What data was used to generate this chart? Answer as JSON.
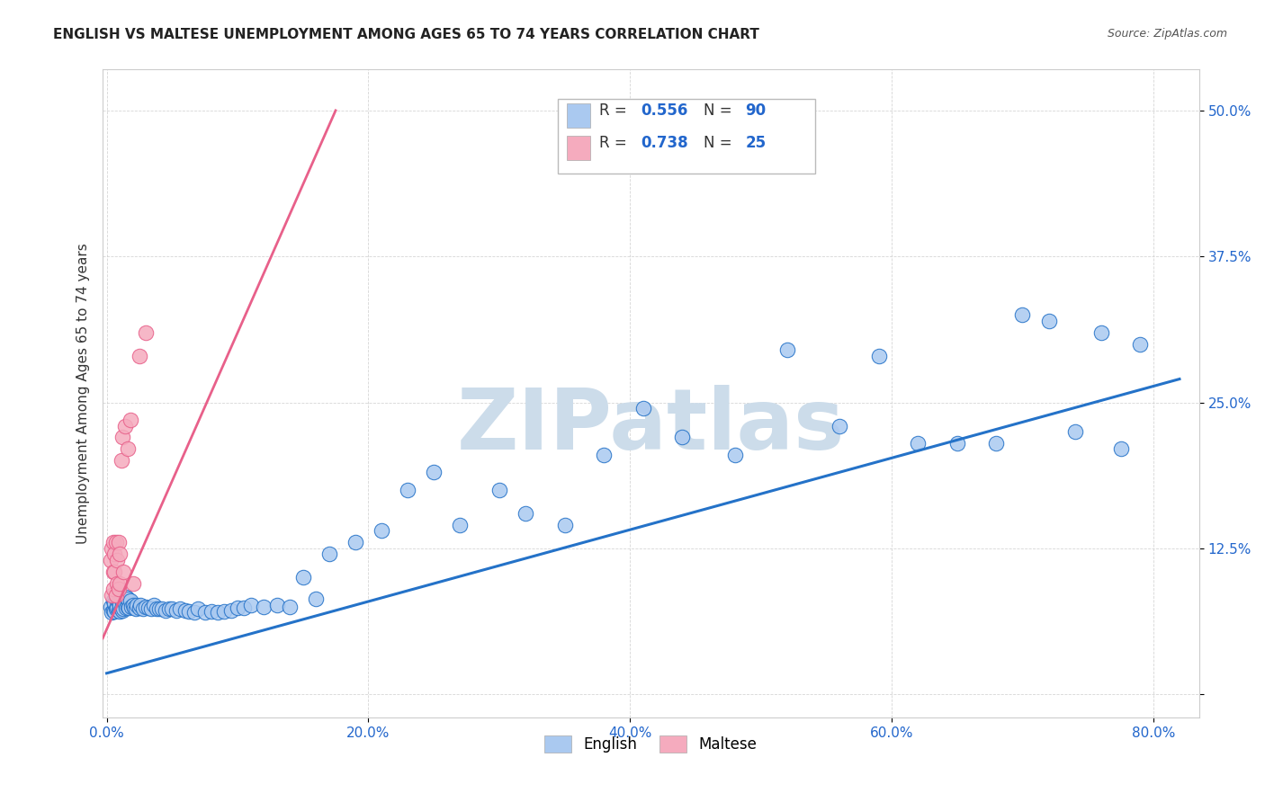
{
  "title": "ENGLISH VS MALTESE UNEMPLOYMENT AMONG AGES 65 TO 74 YEARS CORRELATION CHART",
  "source": "Source: ZipAtlas.com",
  "ylabel": "Unemployment Among Ages 65 to 74 years",
  "xlim": [
    -0.003,
    0.835
  ],
  "ylim": [
    -0.02,
    0.535
  ],
  "xticks": [
    0.0,
    0.2,
    0.4,
    0.6,
    0.8
  ],
  "xtick_labels": [
    "0.0%",
    "20.0%",
    "40.0%",
    "60.0%",
    "80.0%"
  ],
  "yticks": [
    0.0,
    0.125,
    0.25,
    0.375,
    0.5
  ],
  "ytick_labels": [
    "",
    "12.5%",
    "25.0%",
    "37.5%",
    "50.0%"
  ],
  "english_R": "0.556",
  "english_N": "90",
  "maltese_R": "0.738",
  "maltese_N": "25",
  "english_color": "#aac9f0",
  "maltese_color": "#f5abbe",
  "english_line_color": "#2472c8",
  "maltese_line_color": "#e8608a",
  "watermark": "ZIPatlas",
  "watermark_color": "#ccdcea",
  "english_scatter_x": [
    0.003,
    0.004,
    0.005,
    0.005,
    0.006,
    0.006,
    0.007,
    0.007,
    0.008,
    0.008,
    0.009,
    0.009,
    0.01,
    0.01,
    0.01,
    0.011,
    0.011,
    0.012,
    0.012,
    0.013,
    0.013,
    0.014,
    0.015,
    0.015,
    0.016,
    0.016,
    0.017,
    0.018,
    0.019,
    0.02,
    0.021,
    0.022,
    0.023,
    0.025,
    0.026,
    0.028,
    0.03,
    0.032,
    0.034,
    0.036,
    0.038,
    0.04,
    0.042,
    0.045,
    0.048,
    0.05,
    0.053,
    0.056,
    0.06,
    0.063,
    0.067,
    0.07,
    0.075,
    0.08,
    0.085,
    0.09,
    0.095,
    0.1,
    0.105,
    0.11,
    0.12,
    0.13,
    0.14,
    0.15,
    0.16,
    0.17,
    0.19,
    0.21,
    0.23,
    0.25,
    0.27,
    0.3,
    0.32,
    0.35,
    0.38,
    0.41,
    0.44,
    0.48,
    0.52,
    0.56,
    0.59,
    0.62,
    0.65,
    0.68,
    0.7,
    0.72,
    0.74,
    0.76,
    0.775,
    0.79
  ],
  "english_scatter_y": [
    0.075,
    0.07,
    0.072,
    0.08,
    0.071,
    0.078,
    0.073,
    0.082,
    0.074,
    0.083,
    0.072,
    0.079,
    0.071,
    0.076,
    0.085,
    0.073,
    0.081,
    0.072,
    0.08,
    0.073,
    0.082,
    0.078,
    0.074,
    0.083,
    0.075,
    0.082,
    0.074,
    0.08,
    0.075,
    0.076,
    0.074,
    0.073,
    0.076,
    0.074,
    0.076,
    0.073,
    0.075,
    0.074,
    0.073,
    0.076,
    0.073,
    0.073,
    0.073,
    0.072,
    0.073,
    0.073,
    0.072,
    0.073,
    0.072,
    0.071,
    0.07,
    0.073,
    0.07,
    0.071,
    0.07,
    0.071,
    0.072,
    0.074,
    0.074,
    0.076,
    0.075,
    0.076,
    0.075,
    0.1,
    0.082,
    0.12,
    0.13,
    0.14,
    0.175,
    0.19,
    0.145,
    0.175,
    0.155,
    0.145,
    0.205,
    0.245,
    0.22,
    0.205,
    0.295,
    0.23,
    0.29,
    0.215,
    0.215,
    0.215,
    0.325,
    0.32,
    0.225,
    0.31,
    0.21,
    0.3
  ],
  "maltese_scatter_x": [
    0.003,
    0.004,
    0.004,
    0.005,
    0.005,
    0.005,
    0.006,
    0.006,
    0.007,
    0.007,
    0.008,
    0.008,
    0.009,
    0.009,
    0.01,
    0.01,
    0.011,
    0.012,
    0.013,
    0.014,
    0.016,
    0.018,
    0.02,
    0.025,
    0.03
  ],
  "maltese_scatter_y": [
    0.115,
    0.085,
    0.125,
    0.09,
    0.105,
    0.13,
    0.105,
    0.12,
    0.085,
    0.13,
    0.095,
    0.115,
    0.09,
    0.13,
    0.095,
    0.12,
    0.2,
    0.22,
    0.105,
    0.23,
    0.21,
    0.235,
    0.095,
    0.29,
    0.31
  ],
  "eng_line_x0": 0.0,
  "eng_line_x1": 0.82,
  "eng_line_y0": 0.018,
  "eng_line_y1": 0.27,
  "mal_line_x0": -0.003,
  "mal_line_x1": 0.175,
  "mal_line_y0": 0.048,
  "mal_line_y1": 0.5
}
